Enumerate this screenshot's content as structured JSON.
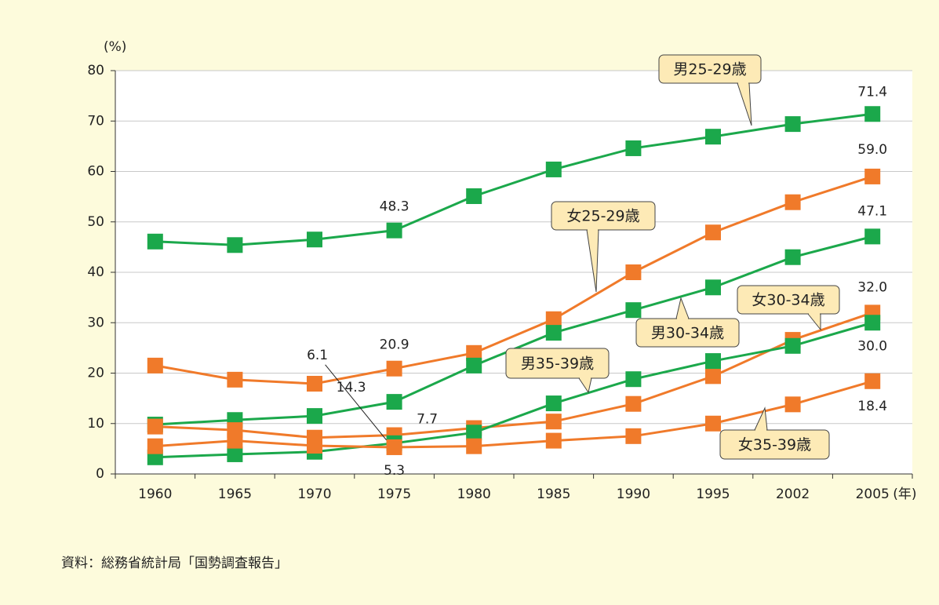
{
  "chart_data": {
    "type": "line",
    "y_unit": "(%)",
    "x_unit": "(年)",
    "source": "資料：総務省統計局「国勢調査報告」",
    "categories": [
      "1960",
      "1965",
      "1970",
      "1975",
      "1980",
      "1985",
      "1990",
      "1995",
      "2002",
      "2005"
    ],
    "ylim": [
      0,
      80
    ],
    "yticks": [
      0,
      10,
      20,
      30,
      40,
      50,
      60,
      70,
      80
    ],
    "grid": true,
    "series": [
      {
        "name": "男25-29歳",
        "color": "#1ba84b",
        "values": [
          46.1,
          45.4,
          46.5,
          48.3,
          55.1,
          60.4,
          64.6,
          66.9,
          69.4,
          71.4
        ],
        "value_labels": [
          null,
          null,
          null,
          "48.3",
          null,
          null,
          null,
          null,
          null,
          "71.4"
        ]
      },
      {
        "name": "女25-29歳",
        "color": "#f07a2a",
        "values": [
          21.5,
          18.7,
          17.9,
          20.9,
          24.0,
          30.7,
          40.0,
          47.9,
          53.9,
          59.0
        ],
        "value_labels": [
          null,
          null,
          null,
          "20.9",
          null,
          null,
          null,
          null,
          null,
          "59.0"
        ]
      },
      {
        "name": "男30-34歳",
        "color": "#1ba84b",
        "values": [
          9.8,
          10.7,
          11.5,
          14.3,
          21.5,
          28.0,
          32.5,
          37.0,
          43.0,
          47.1
        ],
        "value_labels": [
          null,
          null,
          null,
          "14.3",
          null,
          null,
          null,
          null,
          null,
          "47.1"
        ]
      },
      {
        "name": "女30-34歳",
        "color": "#f07a2a",
        "values": [
          9.4,
          8.7,
          7.2,
          7.7,
          9.1,
          10.4,
          13.9,
          19.4,
          26.6,
          32.0
        ],
        "value_labels": [
          null,
          null,
          null,
          "7.7",
          null,
          null,
          null,
          null,
          null,
          "32.0"
        ]
      },
      {
        "name": "男35-39歳",
        "color": "#1ba84b",
        "values": [
          3.3,
          3.9,
          4.4,
          6.1,
          8.2,
          14.0,
          18.8,
          22.4,
          25.4,
          30.0
        ],
        "value_labels": [
          null,
          null,
          null,
          "6.1",
          null,
          null,
          null,
          null,
          null,
          "30.0"
        ]
      },
      {
        "name": "女35-39歳",
        "color": "#f07a2a",
        "values": [
          5.5,
          6.6,
          5.6,
          5.3,
          5.5,
          6.6,
          7.5,
          10.0,
          13.8,
          18.4
        ],
        "value_labels": [
          null,
          null,
          null,
          "5.3",
          null,
          null,
          null,
          null,
          null,
          "18.4"
        ]
      }
    ]
  }
}
